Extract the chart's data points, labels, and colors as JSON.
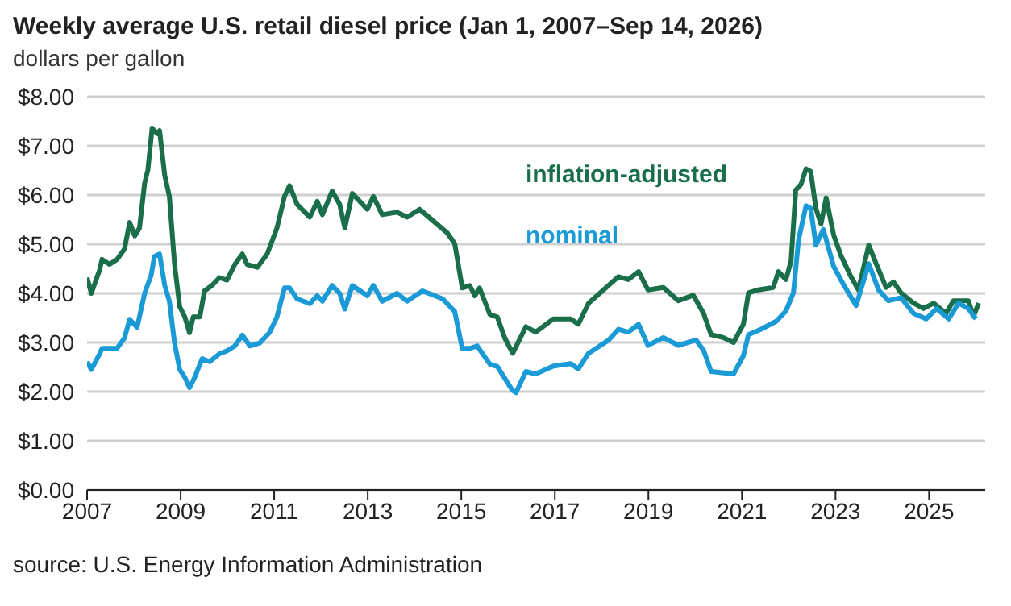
{
  "chart_data": {
    "type": "line",
    "title": "Weekly average U.S. retail diesel price (Jan 1, 2007–Sep 14, 2026)",
    "subtitle": "dollars per gallon",
    "annotations": [
      "source: U.S. Energy Information Administration"
    ],
    "xlim": [
      2007,
      2026.2
    ],
    "xticks": [
      2007,
      2009,
      2011,
      2013,
      2015,
      2017,
      2019,
      2021,
      2023,
      2025
    ],
    "ylim": [
      0,
      8
    ],
    "yticks": [
      {
        "value": 0,
        "label": "$0.00"
      },
      {
        "value": 1,
        "label": "$1.00"
      },
      {
        "value": 2,
        "label": "$2.00"
      },
      {
        "value": 3,
        "label": "$3.00"
      },
      {
        "value": 4,
        "label": "$4.00"
      },
      {
        "value": 5,
        "label": "$5.00"
      },
      {
        "value": 6,
        "label": "$6.00"
      },
      {
        "value": 7,
        "label": "$7.00"
      },
      {
        "value": 8,
        "label": "$8.00"
      }
    ],
    "grid": "y",
    "legend": false,
    "marker": "none",
    "line_style": "solid",
    "series": [
      {
        "name": "inflation-adjusted",
        "color": "#1a6e4a",
        "x": [
          2007.0,
          2007.09,
          2007.27,
          2007.32,
          2007.48,
          2007.64,
          2007.8,
          2007.91,
          2008.02,
          2008.12,
          2008.23,
          2008.3,
          2008.39,
          2008.5,
          2008.55,
          2008.66,
          2008.76,
          2008.87,
          2008.98,
          2009.09,
          2009.19,
          2009.27,
          2009.41,
          2009.51,
          2009.67,
          2009.83,
          2009.99,
          2010.16,
          2010.32,
          2010.42,
          2010.64,
          2010.85,
          2011.06,
          2011.22,
          2011.33,
          2011.49,
          2011.76,
          2011.92,
          2012.03,
          2012.24,
          2012.4,
          2012.51,
          2012.67,
          2012.83,
          2012.99,
          2013.12,
          2013.31,
          2013.63,
          2013.84,
          2014.11,
          2014.38,
          2014.7,
          2014.86,
          2015.02,
          2015.18,
          2015.29,
          2015.39,
          2015.61,
          2015.77,
          2015.93,
          2016.1,
          2016.38,
          2016.59,
          2016.97,
          2017.34,
          2017.5,
          2017.72,
          2018.04,
          2018.36,
          2018.57,
          2018.79,
          2018.99,
          2019.32,
          2019.64,
          2019.96,
          2020.18,
          2020.34,
          2020.6,
          2020.82,
          2021.03,
          2021.14,
          2021.35,
          2021.67,
          2021.78,
          2021.94,
          2022.05,
          2022.15,
          2022.26,
          2022.37,
          2022.47,
          2022.58,
          2022.69,
          2022.8,
          2022.96,
          2023.12,
          2023.33,
          2023.49,
          2023.71,
          2023.87,
          2024.08,
          2024.24,
          2024.4,
          2024.67,
          2024.88,
          2025.1,
          2025.36,
          2025.52,
          2025.84,
          2025.95,
          2026.06
        ],
        "values": [
          4.32,
          4.0,
          4.48,
          4.69,
          4.59,
          4.69,
          4.9,
          5.44,
          5.17,
          5.33,
          6.24,
          6.51,
          7.36,
          7.25,
          7.31,
          6.4,
          5.97,
          4.59,
          3.73,
          3.52,
          3.2,
          3.52,
          3.52,
          4.05,
          4.16,
          4.32,
          4.27,
          4.59,
          4.8,
          4.59,
          4.53,
          4.8,
          5.33,
          5.97,
          6.19,
          5.81,
          5.55,
          5.87,
          5.6,
          6.08,
          5.81,
          5.33,
          6.03,
          5.87,
          5.71,
          5.97,
          5.6,
          5.65,
          5.55,
          5.71,
          5.49,
          5.23,
          5.01,
          4.11,
          4.16,
          3.95,
          4.11,
          3.57,
          3.52,
          3.09,
          2.78,
          3.32,
          3.21,
          3.48,
          3.48,
          3.37,
          3.8,
          4.07,
          4.34,
          4.28,
          4.44,
          4.07,
          4.12,
          3.85,
          3.96,
          3.59,
          3.16,
          3.1,
          3.0,
          3.37,
          4.01,
          4.07,
          4.12,
          4.44,
          4.28,
          4.66,
          6.1,
          6.21,
          6.53,
          6.48,
          5.73,
          5.41,
          5.94,
          5.19,
          4.76,
          4.34,
          4.07,
          4.98,
          4.6,
          4.12,
          4.23,
          4.01,
          3.8,
          3.69,
          3.8,
          3.59,
          3.85,
          3.85,
          3.53,
          3.8
        ]
      },
      {
        "name": "nominal",
        "color": "#1a9ad6",
        "x": [
          2007.0,
          2007.09,
          2007.27,
          2007.32,
          2007.64,
          2007.8,
          2007.91,
          2008.07,
          2008.23,
          2008.37,
          2008.44,
          2008.55,
          2008.66,
          2008.76,
          2008.87,
          2008.98,
          2009.09,
          2009.19,
          2009.3,
          2009.46,
          2009.62,
          2009.83,
          2009.99,
          2010.16,
          2010.32,
          2010.48,
          2010.69,
          2010.9,
          2011.06,
          2011.22,
          2011.33,
          2011.49,
          2011.76,
          2011.92,
          2012.03,
          2012.24,
          2012.4,
          2012.51,
          2012.67,
          2012.99,
          2013.12,
          2013.31,
          2013.63,
          2013.84,
          2014.17,
          2014.6,
          2014.86,
          2015.02,
          2015.18,
          2015.34,
          2015.61,
          2015.77,
          2016.09,
          2016.17,
          2016.38,
          2016.59,
          2016.97,
          2017.34,
          2017.5,
          2017.72,
          2018.15,
          2018.36,
          2018.57,
          2018.79,
          2018.99,
          2019.32,
          2019.64,
          2020.02,
          2020.18,
          2020.34,
          2020.82,
          2021.03,
          2021.14,
          2021.41,
          2021.73,
          2021.94,
          2022.1,
          2022.21,
          2022.37,
          2022.47,
          2022.58,
          2022.74,
          2022.96,
          2023.17,
          2023.44,
          2023.71,
          2023.92,
          2024.13,
          2024.4,
          2024.67,
          2024.94,
          2025.16,
          2025.42,
          2025.63,
          2025.84,
          2026.0
        ],
        "values": [
          2.61,
          2.45,
          2.77,
          2.88,
          2.88,
          3.09,
          3.47,
          3.31,
          4.0,
          4.37,
          4.75,
          4.8,
          4.16,
          3.84,
          2.99,
          2.45,
          2.29,
          2.08,
          2.29,
          2.67,
          2.61,
          2.77,
          2.83,
          2.93,
          3.15,
          2.93,
          2.99,
          3.2,
          3.52,
          4.11,
          4.11,
          3.89,
          3.79,
          3.95,
          3.84,
          4.16,
          4.0,
          3.68,
          4.16,
          3.95,
          4.16,
          3.84,
          4.0,
          3.84,
          4.05,
          3.89,
          3.63,
          2.88,
          2.88,
          2.93,
          2.56,
          2.51,
          2.03,
          1.98,
          2.41,
          2.36,
          2.52,
          2.57,
          2.46,
          2.78,
          3.05,
          3.27,
          3.21,
          3.37,
          2.94,
          3.1,
          2.94,
          3.05,
          2.84,
          2.41,
          2.36,
          2.73,
          3.16,
          3.27,
          3.43,
          3.64,
          4.01,
          5.09,
          5.78,
          5.73,
          4.98,
          5.3,
          4.55,
          4.18,
          3.75,
          4.6,
          4.07,
          3.85,
          3.91,
          3.59,
          3.48,
          3.69,
          3.48,
          3.8,
          3.69,
          3.48
        ]
      }
    ]
  }
}
